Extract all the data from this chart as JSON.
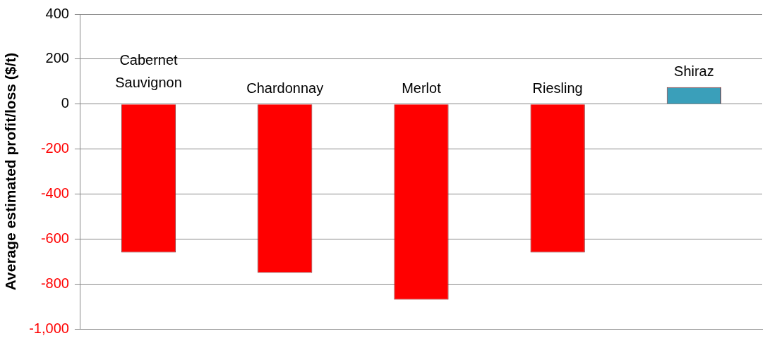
{
  "chart_data": {
    "type": "bar",
    "ylabel": "Average estimated profit/loss ($/t)",
    "categories": [
      "Cabernet Sauvignon",
      "Chardonnay",
      "Merlot",
      "Riesling",
      "Shiraz"
    ],
    "values": [
      -660,
      -750,
      -870,
      -660,
      75
    ],
    "colors": [
      "#ff0000",
      "#ff0000",
      "#ff0000",
      "#ff0000",
      "#3a9fba"
    ],
    "ylim": [
      -1000,
      400
    ],
    "yticks": [
      {
        "value": -1000,
        "label": "-1,000"
      },
      -800,
      -600,
      -400,
      -200,
      0,
      200,
      400
    ],
    "grid": "y",
    "tick_labels": "y"
  }
}
